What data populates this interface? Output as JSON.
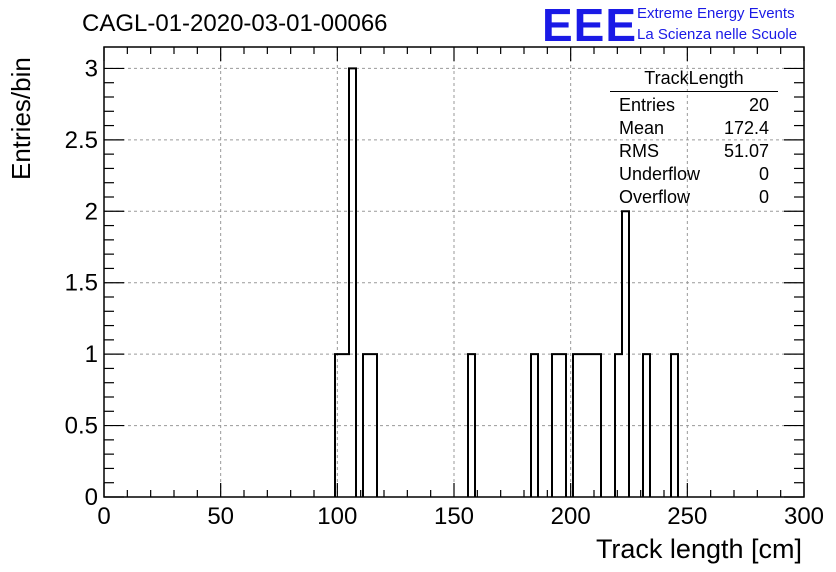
{
  "title": "CAGL-01-2020-03-01-00066",
  "logo": {
    "mark": "EEE",
    "line1": "Extreme Energy Events",
    "line2": "La Scienza nelle Scuole",
    "color": "#1a1ae6"
  },
  "stats_box": {
    "title": "TrackLength",
    "rows": [
      {
        "label": "Entries",
        "value": "20"
      },
      {
        "label": "Mean",
        "value": "172.4"
      },
      {
        "label": "RMS",
        "value": "51.07"
      },
      {
        "label": "Underflow",
        "value": "0"
      },
      {
        "label": "Overflow",
        "value": "0"
      }
    ]
  },
  "chart_data": {
    "type": "bar",
    "xlabel": "Track length [cm]",
    "ylabel": "Entries/bin",
    "xlim": [
      0,
      300
    ],
    "ylim": [
      0,
      3.15
    ],
    "xticks": [
      0,
      50,
      100,
      150,
      200,
      250,
      300
    ],
    "yticks": [
      0,
      0.5,
      1,
      1.5,
      2,
      2.5,
      3
    ],
    "ytick_labels": [
      "0",
      "0.5",
      "1",
      "1.5",
      "2",
      "2.5",
      "3"
    ],
    "grid": true,
    "bin_width": 3,
    "bins": [
      {
        "x0": 99,
        "x1": 105,
        "y": 1
      },
      {
        "x0": 105,
        "x1": 108,
        "y": 3
      },
      {
        "x0": 111,
        "x1": 117,
        "y": 1
      },
      {
        "x0": 156,
        "x1": 159,
        "y": 1
      },
      {
        "x0": 183,
        "x1": 186,
        "y": 1
      },
      {
        "x0": 192,
        "x1": 198,
        "y": 1
      },
      {
        "x0": 201,
        "x1": 213,
        "y": 1
      },
      {
        "x0": 219,
        "x1": 222,
        "y": 1
      },
      {
        "x0": 222,
        "x1": 225,
        "y": 2
      },
      {
        "x0": 231,
        "x1": 234,
        "y": 1
      },
      {
        "x0": 243,
        "x1": 246,
        "y": 1
      }
    ]
  }
}
